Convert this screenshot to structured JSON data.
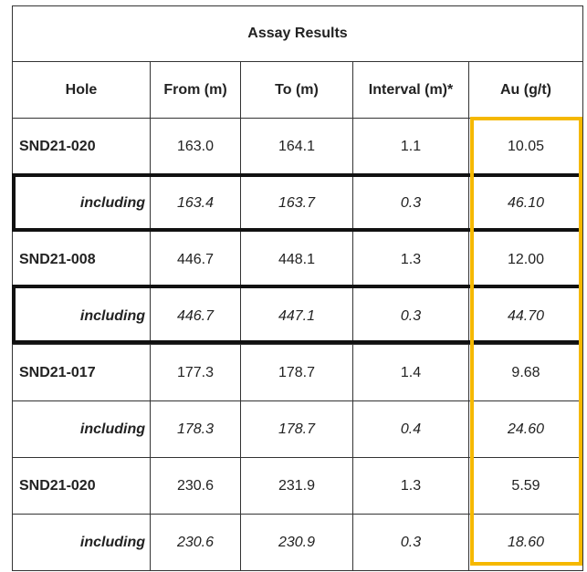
{
  "table": {
    "title": "Assay Results",
    "headers": [
      "Hole",
      "From (m)",
      "To (m)",
      "Interval (m)*",
      "Au (g/t)"
    ],
    "rows": [
      {
        "hole": "SND21-020",
        "from": "163.0",
        "to": "164.1",
        "interval": "1.1",
        "au": "10.05",
        "including": false
      },
      {
        "hole": "including",
        "from": "163.4",
        "to": "163.7",
        "interval": "0.3",
        "au": "46.10",
        "including": true
      },
      {
        "hole": "SND21-008",
        "from": "446.7",
        "to": "448.1",
        "interval": "1.3",
        "au": "12.00",
        "including": false
      },
      {
        "hole": "including",
        "from": "446.7",
        "to": "447.1",
        "interval": "0.3",
        "au": "44.70",
        "including": true
      },
      {
        "hole": "SND21-017",
        "from": "177.3",
        "to": "178.7",
        "interval": "1.4",
        "au": "9.68",
        "including": false
      },
      {
        "hole": "including",
        "from": "178.3",
        "to": "178.7",
        "interval": "0.4",
        "au": "24.60",
        "including": true
      },
      {
        "hole": "SND21-020",
        "from": "230.6",
        "to": "231.9",
        "interval": "1.3",
        "au": "5.59",
        "including": false
      },
      {
        "hole": "including",
        "from": "230.6",
        "to": "230.9",
        "interval": "0.3",
        "au": "18.60",
        "including": true
      }
    ]
  },
  "highlights": {
    "row_box_color": "#111111",
    "column_box_color": "#f5b800",
    "boxed_rows": [
      1,
      3
    ],
    "boxed_column": "au"
  }
}
